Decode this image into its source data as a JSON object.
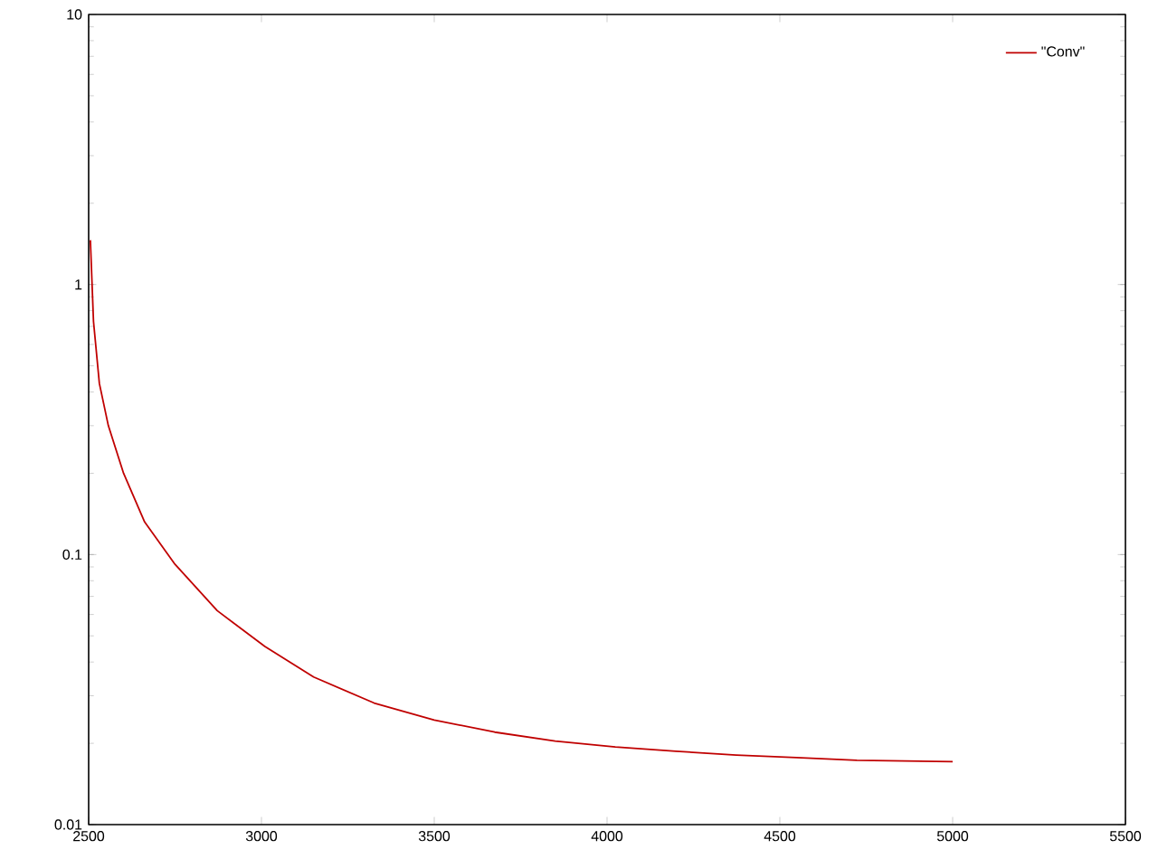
{
  "chart_data": {
    "type": "line",
    "log": "y",
    "legend": "top right",
    "xlim": [
      2500,
      5500
    ],
    "ylim": [
      0.01,
      10
    ],
    "xticks": [
      2500,
      3000,
      3500,
      4000,
      4500,
      5000,
      5500
    ],
    "yticks": [
      0.01,
      0.1,
      1,
      10
    ],
    "x": [
      2505,
      2514,
      2531,
      2557,
      2601,
      2662,
      2750,
      2872,
      3010,
      3151,
      3326,
      3500,
      3675,
      3850,
      4024,
      4199,
      4374,
      4548,
      4723,
      5000
    ],
    "series": [
      {
        "name": "\"Conv\"",
        "color": "#c00000",
        "values": [
          1.46,
          0.73,
          0.43,
          0.3,
          0.2,
          0.132,
          0.092,
          0.062,
          0.0457,
          0.0352,
          0.0282,
          0.0244,
          0.022,
          0.0204,
          0.0194,
          0.0187,
          0.0181,
          0.0177,
          0.0173,
          0.0171
        ]
      }
    ]
  }
}
